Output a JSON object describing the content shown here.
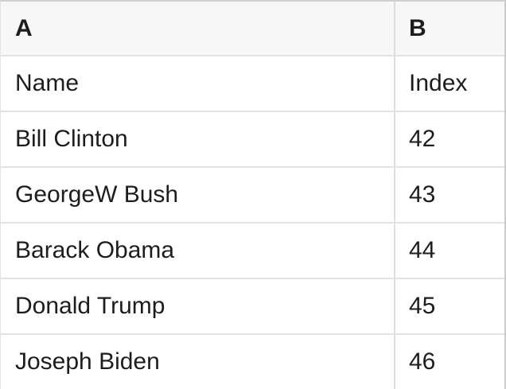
{
  "table": {
    "columns": [
      {
        "label": "A"
      },
      {
        "label": "B"
      }
    ],
    "rows": [
      {
        "a": "Name",
        "b": "Index"
      },
      {
        "a": "Bill Clinton",
        "b": "42"
      },
      {
        "a": "GeorgeW Bush",
        "b": "43"
      },
      {
        "a": "Barack Obama",
        "b": "44"
      },
      {
        "a": "Donald Trump",
        "b": "45"
      },
      {
        "a": "Joseph Biden",
        "b": "46"
      }
    ]
  },
  "colors": {
    "header_bg": "#f7f7f7",
    "row_bg": "#ffffff",
    "grid_line": "#e2e2e2",
    "column_divider": "#dedede",
    "outer_border_top": "#cfcfcf",
    "outer_border_right": "#cccccc",
    "outer_border_left": "#e3e3e3",
    "text": "#1d1d1d"
  }
}
